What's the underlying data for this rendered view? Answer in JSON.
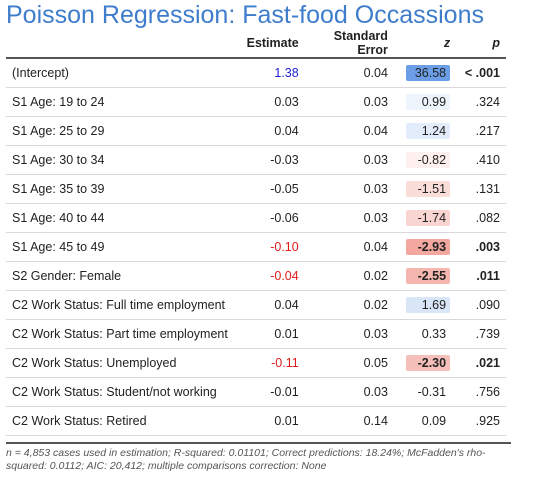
{
  "title": "Poisson Regression: Fast-food Occassions",
  "columns": {
    "label": "",
    "estimate": "Estimate",
    "se": "Standard Error",
    "z": "z",
    "p": "p"
  },
  "rows": [
    {
      "label": "(Intercept)",
      "estimate": "1.38",
      "se": "0.04",
      "z": "36.58",
      "p": "< .001",
      "est_color": "#1f1fd6",
      "z_bg": "#6b9ee6",
      "p_bold": true,
      "z_bold": false
    },
    {
      "label": "S1 Age: 19 to 24",
      "estimate": "0.03",
      "se": "0.03",
      "z": "0.99",
      "p": ".324",
      "est_color": "#222222",
      "z_bg": "#eef4fc",
      "p_bold": false,
      "z_bold": false
    },
    {
      "label": "S1 Age: 25 to 29",
      "estimate": "0.04",
      "se": "0.04",
      "z": "1.24",
      "p": ".217",
      "est_color": "#222222",
      "z_bg": "#e3ecfa",
      "p_bold": false,
      "z_bold": false
    },
    {
      "label": "S1 Age: 30 to 34",
      "estimate": "-0.03",
      "se": "0.03",
      "z": "-0.82",
      "p": ".410",
      "est_color": "#222222",
      "z_bg": "#fdf0ef",
      "p_bold": false,
      "z_bold": false
    },
    {
      "label": "S1 Age: 35 to 39",
      "estimate": "-0.05",
      "se": "0.03",
      "z": "-1.51",
      "p": ".131",
      "est_color": "#222222",
      "z_bg": "#fadcd9",
      "p_bold": false,
      "z_bold": false
    },
    {
      "label": "S1 Age: 40 to 44",
      "estimate": "-0.06",
      "se": "0.03",
      "z": "-1.74",
      "p": ".082",
      "est_color": "#222222",
      "z_bg": "#f9d5d1",
      "p_bold": false,
      "z_bold": false
    },
    {
      "label": "S1 Age: 45 to 49",
      "estimate": "-0.10",
      "se": "0.04",
      "z": "-2.93",
      "p": ".003",
      "est_color": "#e01b1b",
      "z_bg": "#f3a79f",
      "p_bold": true,
      "z_bold": true
    },
    {
      "label": "S2 Gender: Female",
      "estimate": "-0.04",
      "se": "0.02",
      "z": "-2.55",
      "p": ".011",
      "est_color": "#e01b1b",
      "z_bg": "#f5b6af",
      "p_bold": true,
      "z_bold": true
    },
    {
      "label": "C2 Work Status: Full time employment",
      "estimate": "0.04",
      "se": "0.02",
      "z": "1.69",
      "p": ".090",
      "est_color": "#222222",
      "z_bg": "#d9e6f8",
      "p_bold": false,
      "z_bold": false
    },
    {
      "label": "C2 Work Status: Part time employment",
      "estimate": "0.01",
      "se": "0.03",
      "z": "0.33",
      "p": ".739",
      "est_color": "#222222",
      "z_bg": "#ffffff",
      "p_bold": false,
      "z_bold": false
    },
    {
      "label": "C2 Work Status: Unemployed",
      "estimate": "-0.11",
      "se": "0.05",
      "z": "-2.30",
      "p": ".021",
      "est_color": "#e01b1b",
      "z_bg": "#f6c0ba",
      "p_bold": true,
      "z_bold": true
    },
    {
      "label": "C2 Work Status: Student/not working",
      "estimate": "-0.01",
      "se": "0.03",
      "z": "-0.31",
      "p": ".756",
      "est_color": "#222222",
      "z_bg": "#ffffff",
      "p_bold": false,
      "z_bold": false
    },
    {
      "label": "C2 Work Status: Retired",
      "estimate": "0.01",
      "se": "0.14",
      "z": "0.09",
      "p": ".925",
      "est_color": "#222222",
      "z_bg": "#ffffff",
      "p_bold": false,
      "z_bold": false
    }
  ],
  "footnote": "n = 4,853 cases used in estimation; R-squared: 0.01101; Correct predictions: 18.24%; McFadden's rho-squared: 0.0112; AIC: 20,412; multiple comparisons correction: None",
  "colors": {
    "title": "#3e7dcc",
    "significant_negative": "#e01b1b",
    "significant_positive": "#1f1fd6"
  }
}
